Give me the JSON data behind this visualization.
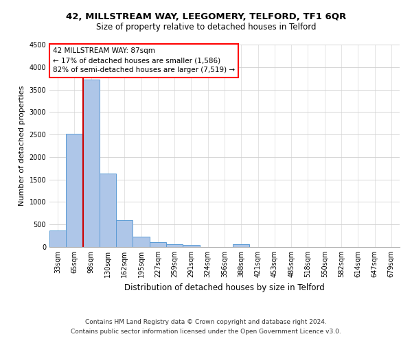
{
  "title1": "42, MILLSTREAM WAY, LEEGOMERY, TELFORD, TF1 6QR",
  "title2": "Size of property relative to detached houses in Telford",
  "xlabel": "Distribution of detached houses by size in Telford",
  "ylabel": "Number of detached properties",
  "footer1": "Contains HM Land Registry data © Crown copyright and database right 2024.",
  "footer2": "Contains public sector information licensed under the Open Government Licence v3.0.",
  "annotation_line1": "42 MILLSTREAM WAY: 87sqm",
  "annotation_line2": "← 17% of detached houses are smaller (1,586)",
  "annotation_line3": "82% of semi-detached houses are larger (7,519) →",
  "bar_color": "#aec6e8",
  "bar_edge_color": "#5b9bd5",
  "vline_color": "#cc0000",
  "categories": [
    "33sqm",
    "65sqm",
    "98sqm",
    "130sqm",
    "162sqm",
    "195sqm",
    "227sqm",
    "259sqm",
    "291sqm",
    "324sqm",
    "356sqm",
    "388sqm",
    "421sqm",
    "453sqm",
    "485sqm",
    "518sqm",
    "550sqm",
    "582sqm",
    "614sqm",
    "647sqm",
    "679sqm"
  ],
  "values": [
    370,
    2510,
    3720,
    1630,
    590,
    225,
    105,
    65,
    40,
    0,
    0,
    55,
    0,
    0,
    0,
    0,
    0,
    0,
    0,
    0,
    0
  ],
  "ylim": [
    0,
    4500
  ],
  "yticks": [
    0,
    500,
    1000,
    1500,
    2000,
    2500,
    3000,
    3500,
    4000,
    4500
  ],
  "vline_position": 1.5,
  "background_color": "#ffffff",
  "grid_color": "#d0d0d0",
  "title1_fontsize": 9.5,
  "title2_fontsize": 8.5,
  "ylabel_fontsize": 8,
  "xlabel_fontsize": 8.5,
  "tick_fontsize": 7,
  "annotation_fontsize": 7.5,
  "footer_fontsize": 6.5
}
